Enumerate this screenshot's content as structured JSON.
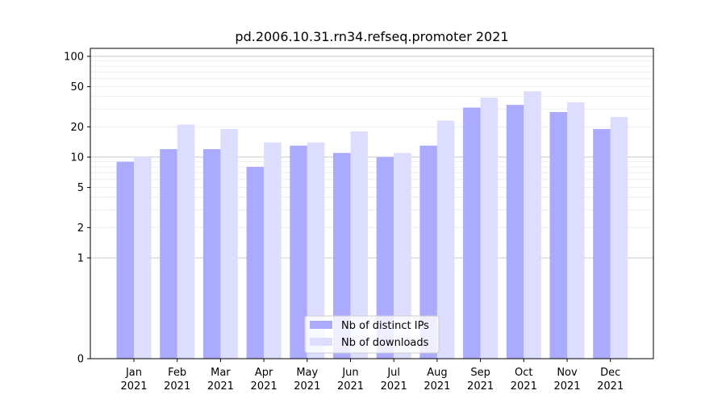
{
  "chart_data": {
    "type": "bar",
    "title": "pd.2006.10.31.rn34.refseq.promoter 2021",
    "categories": [
      "Jan",
      "Feb",
      "Mar",
      "Apr",
      "May",
      "Jun",
      "Jul",
      "Aug",
      "Sep",
      "Oct",
      "Nov",
      "Dec"
    ],
    "category_years": [
      "2021",
      "2021",
      "2021",
      "2021",
      "2021",
      "2021",
      "2021",
      "2021",
      "2021",
      "2021",
      "2021",
      "2021"
    ],
    "series": [
      {
        "name": "Nb of distinct IPs",
        "color": "#aaaaff",
        "values": [
          9,
          12,
          12,
          8,
          13,
          11,
          10,
          13,
          31,
          33,
          28,
          19
        ]
      },
      {
        "name": "Nb of downloads",
        "color": "#ddddff",
        "values": [
          10,
          21,
          19,
          14,
          14,
          18,
          11,
          23,
          39,
          45,
          35,
          25
        ]
      }
    ],
    "y_scale": "symlog",
    "y_ticks": [
      "0",
      "1",
      "2",
      "5",
      "10",
      "20",
      "50",
      "100"
    ],
    "ylim": [
      0,
      120
    ],
    "grid": true,
    "legend_position": "bottom-center"
  }
}
